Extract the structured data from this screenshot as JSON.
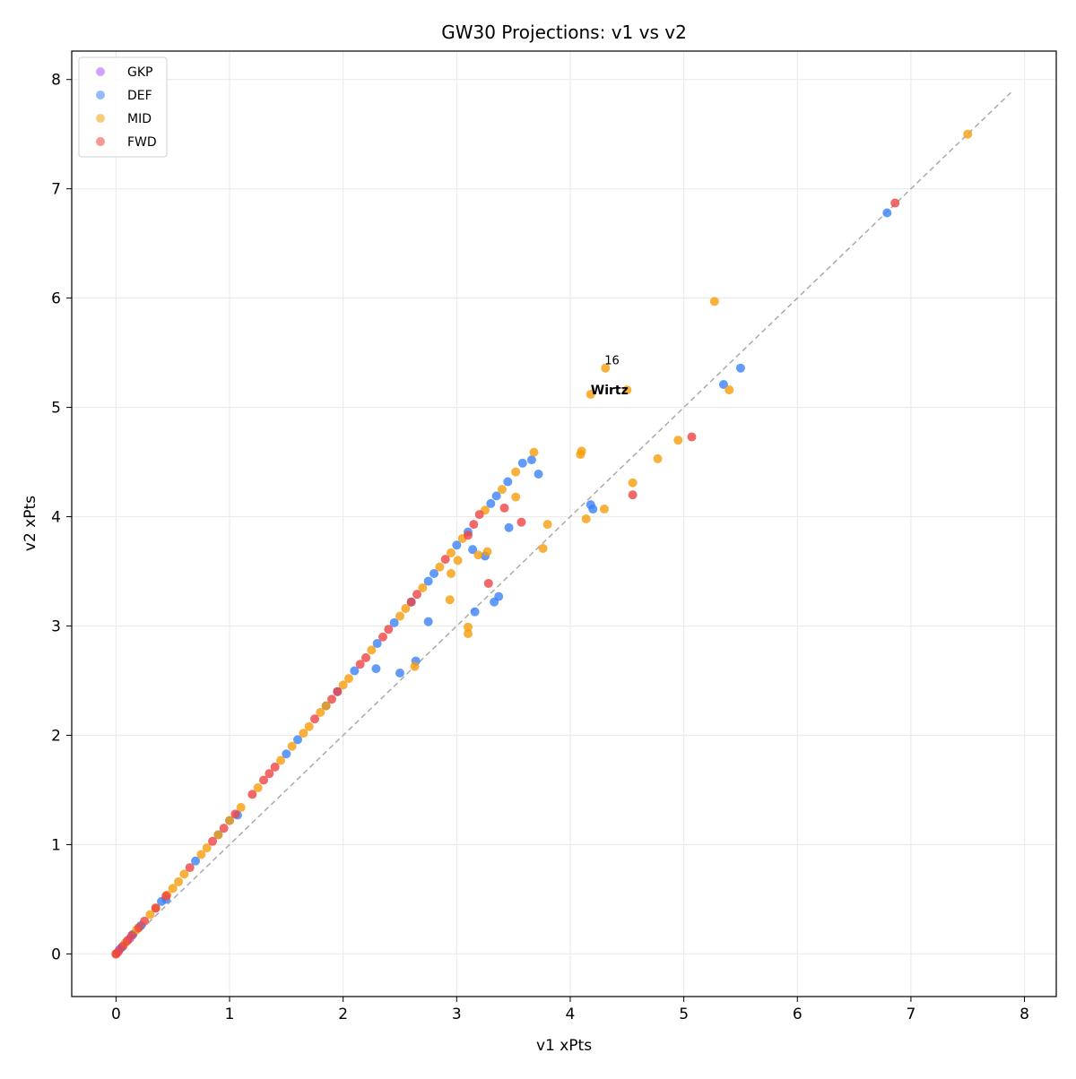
{
  "chart_data": {
    "type": "scatter",
    "title": "GW30 Projections: v1 vs v2",
    "xlabel": "v1 xPts",
    "ylabel": "v2 xPts",
    "xlim": [
      -0.39,
      8.28
    ],
    "ylim": [
      -0.39,
      8.26
    ],
    "xticks": [
      0,
      1,
      2,
      3,
      4,
      5,
      6,
      7,
      8
    ],
    "yticks": [
      0,
      1,
      2,
      3,
      4,
      5,
      6,
      7,
      8
    ],
    "grid": true,
    "legend_position": "top-left",
    "reference_line": {
      "style": "dashed",
      "color": "#aaaaaa",
      "from": [
        0,
        0
      ],
      "to": [
        7.88,
        7.88
      ]
    },
    "series": [
      {
        "name": "GKP",
        "color": "#a855f7",
        "points": [
          [
            0,
            0
          ],
          [
            0.03,
            0.04
          ],
          [
            0.12,
            0.14
          ]
        ]
      },
      {
        "name": "DEF",
        "color": "#3b82f6",
        "points": [
          [
            0,
            0
          ],
          [
            0.05,
            0.06
          ],
          [
            0.15,
            0.18
          ],
          [
            0.22,
            0.26
          ],
          [
            0.4,
            0.48
          ],
          [
            0.7,
            0.85
          ],
          [
            0.9,
            1.09
          ],
          [
            1.0,
            1.22
          ],
          [
            1.5,
            1.83
          ],
          [
            1.6,
            1.96
          ],
          [
            1.85,
            2.27
          ],
          [
            1.95,
            2.4
          ],
          [
            2.1,
            2.59
          ],
          [
            2.3,
            2.84
          ],
          [
            2.45,
            3.03
          ],
          [
            2.6,
            3.22
          ],
          [
            2.75,
            3.41
          ],
          [
            2.8,
            3.48
          ],
          [
            3.0,
            3.74
          ],
          [
            3.1,
            3.86
          ],
          [
            3.3,
            4.12
          ],
          [
            3.35,
            4.19
          ],
          [
            3.45,
            4.32
          ],
          [
            3.58,
            4.49
          ],
          [
            3.66,
            4.52
          ],
          [
            6.79,
            6.78
          ],
          [
            5.5,
            5.36
          ],
          [
            5.35,
            5.21
          ],
          [
            4.18,
            4.11
          ],
          [
            4.2,
            4.07
          ],
          [
            3.72,
            4.39
          ],
          [
            3.46,
            3.9
          ],
          [
            3.14,
            3.7
          ],
          [
            3.25,
            3.64
          ],
          [
            3.37,
            3.27
          ],
          [
            3.33,
            3.22
          ],
          [
            3.16,
            3.13
          ],
          [
            2.75,
            3.04
          ],
          [
            2.5,
            2.57
          ],
          [
            2.29,
            2.61
          ],
          [
            2.64,
            2.68
          ],
          [
            1.07,
            1.27
          ],
          [
            0.44,
            0.5
          ]
        ]
      },
      {
        "name": "MID",
        "color": "#f59e0b",
        "points": [
          [
            0,
            0
          ],
          [
            0.08,
            0.1
          ],
          [
            0.18,
            0.22
          ],
          [
            0.3,
            0.36
          ],
          [
            0.35,
            0.42
          ],
          [
            0.45,
            0.54
          ],
          [
            0.5,
            0.6
          ],
          [
            0.55,
            0.66
          ],
          [
            0.6,
            0.73
          ],
          [
            0.75,
            0.91
          ],
          [
            0.8,
            0.97
          ],
          [
            0.9,
            1.09
          ],
          [
            1.0,
            1.22
          ],
          [
            1.1,
            1.34
          ],
          [
            1.25,
            1.52
          ],
          [
            1.45,
            1.77
          ],
          [
            1.55,
            1.9
          ],
          [
            1.65,
            2.02
          ],
          [
            1.7,
            2.08
          ],
          [
            1.8,
            2.21
          ],
          [
            1.85,
            2.27
          ],
          [
            2.0,
            2.46
          ],
          [
            2.05,
            2.52
          ],
          [
            2.25,
            2.78
          ],
          [
            2.5,
            3.09
          ],
          [
            2.55,
            3.16
          ],
          [
            2.7,
            3.35
          ],
          [
            2.85,
            3.54
          ],
          [
            2.95,
            3.67
          ],
          [
            3.05,
            3.8
          ],
          [
            3.25,
            4.06
          ],
          [
            3.4,
            4.25
          ],
          [
            3.52,
            4.41
          ],
          [
            3.68,
            4.59
          ],
          [
            7.5,
            7.5
          ],
          [
            5.27,
            5.97
          ],
          [
            4.31,
            5.36
          ],
          [
            4.18,
            5.12
          ],
          [
            4.5,
            5.16
          ],
          [
            5.4,
            5.16
          ],
          [
            4.95,
            4.7
          ],
          [
            4.77,
            4.53
          ],
          [
            4.55,
            4.31
          ],
          [
            4.09,
            4.57
          ],
          [
            4.1,
            4.6
          ],
          [
            4.3,
            4.07
          ],
          [
            4.14,
            3.98
          ],
          [
            3.8,
            3.93
          ],
          [
            3.76,
            3.71
          ],
          [
            3.52,
            4.18
          ],
          [
            3.27,
            3.68
          ],
          [
            3.19,
            3.65
          ],
          [
            2.95,
            3.48
          ],
          [
            3.01,
            3.6
          ],
          [
            3.1,
            2.99
          ],
          [
            3.1,
            2.93
          ],
          [
            2.94,
            3.24
          ],
          [
            2.63,
            2.63
          ]
        ]
      },
      {
        "name": "FWD",
        "color": "#ef4444",
        "points": [
          [
            0,
            0
          ],
          [
            0.02,
            0.02
          ],
          [
            0.06,
            0.07
          ],
          [
            0.1,
            0.12
          ],
          [
            0.14,
            0.17
          ],
          [
            0.2,
            0.24
          ],
          [
            0.25,
            0.3
          ],
          [
            0.35,
            0.42
          ],
          [
            0.44,
            0.53
          ],
          [
            0.65,
            0.79
          ],
          [
            0.85,
            1.03
          ],
          [
            0.95,
            1.15
          ],
          [
            1.05,
            1.28
          ],
          [
            1.2,
            1.46
          ],
          [
            1.3,
            1.59
          ],
          [
            1.35,
            1.65
          ],
          [
            1.4,
            1.71
          ],
          [
            1.75,
            2.15
          ],
          [
            1.9,
            2.33
          ],
          [
            1.95,
            2.4
          ],
          [
            2.15,
            2.65
          ],
          [
            2.2,
            2.71
          ],
          [
            2.35,
            2.9
          ],
          [
            2.4,
            2.97
          ],
          [
            2.6,
            3.22
          ],
          [
            2.65,
            3.29
          ],
          [
            2.9,
            3.61
          ],
          [
            3.1,
            3.83
          ],
          [
            3.15,
            3.93
          ],
          [
            3.2,
            4.02
          ],
          [
            6.86,
            6.87
          ],
          [
            5.07,
            4.73
          ],
          [
            4.55,
            4.2
          ],
          [
            3.57,
            3.95
          ],
          [
            3.42,
            4.08
          ],
          [
            3.28,
            3.39
          ]
        ]
      }
    ],
    "annotations": [
      {
        "text": "16",
        "at": [
          4.31,
          5.36
        ]
      },
      {
        "text": "Wirtz",
        "at": [
          4.18,
          5.12
        ]
      }
    ]
  }
}
